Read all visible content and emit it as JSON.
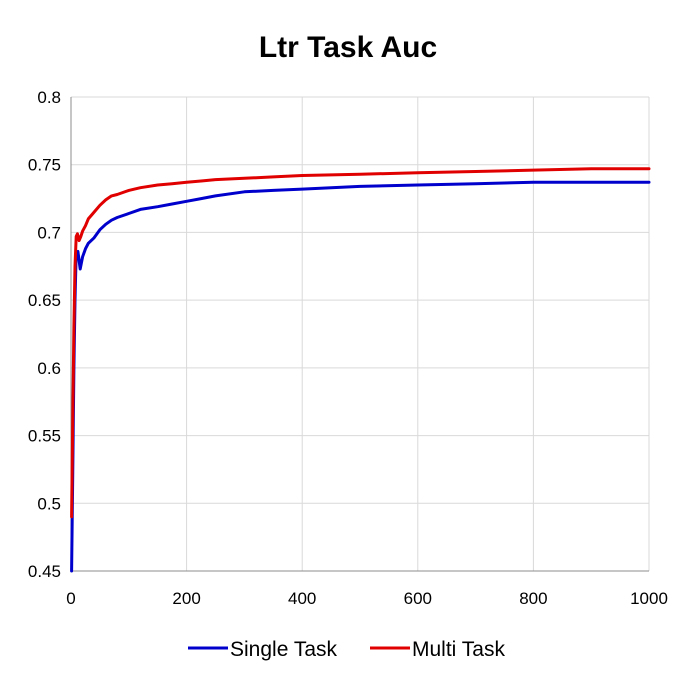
{
  "chart_data": {
    "type": "line",
    "title": "Ltr Task Auc",
    "xlabel": "",
    "ylabel": "",
    "xlim": [
      0,
      1000
    ],
    "ylim": [
      0.45,
      0.8
    ],
    "x_ticks": [
      0,
      200,
      400,
      600,
      800,
      1000
    ],
    "x_tick_labels": [
      "0",
      "200",
      "400",
      "600",
      "800",
      "1000"
    ],
    "y_ticks": [
      0.45,
      0.5,
      0.55,
      0.6,
      0.65,
      0.7,
      0.75,
      0.8
    ],
    "y_tick_labels": [
      "0.45",
      "0.5",
      "0.55",
      "0.6",
      "0.65",
      "0.7",
      "0.75",
      "0.8"
    ],
    "grid": true,
    "legend_position": "bottom",
    "series": [
      {
        "name": "Single Task",
        "color": "#0000cc",
        "x": [
          1,
          3,
          5,
          7,
          9,
          12,
          16,
          20,
          25,
          30,
          40,
          50,
          60,
          70,
          80,
          100,
          120,
          150,
          175,
          200,
          225,
          250,
          300,
          350,
          400,
          450,
          500,
          600,
          700,
          800,
          900,
          1000
        ],
        "y": [
          0.45,
          0.52,
          0.6,
          0.65,
          0.685,
          0.686,
          0.673,
          0.682,
          0.688,
          0.692,
          0.696,
          0.702,
          0.706,
          0.709,
          0.711,
          0.714,
          0.717,
          0.719,
          0.721,
          0.723,
          0.725,
          0.727,
          0.73,
          0.731,
          0.732,
          0.733,
          0.734,
          0.735,
          0.736,
          0.737,
          0.737,
          0.737
        ]
      },
      {
        "name": "Multi Task",
        "color": "#e00000",
        "x": [
          1,
          3,
          5,
          7,
          9,
          11,
          14,
          17,
          20,
          25,
          30,
          40,
          50,
          60,
          70,
          80,
          100,
          120,
          150,
          175,
          200,
          225,
          250,
          300,
          350,
          400,
          500,
          600,
          700,
          800,
          900,
          1000
        ],
        "y": [
          0.49,
          0.56,
          0.63,
          0.675,
          0.697,
          0.699,
          0.694,
          0.697,
          0.701,
          0.705,
          0.71,
          0.715,
          0.72,
          0.724,
          0.727,
          0.728,
          0.731,
          0.733,
          0.735,
          0.736,
          0.737,
          0.738,
          0.739,
          0.74,
          0.741,
          0.742,
          0.743,
          0.744,
          0.745,
          0.746,
          0.747,
          0.747
        ]
      }
    ]
  }
}
